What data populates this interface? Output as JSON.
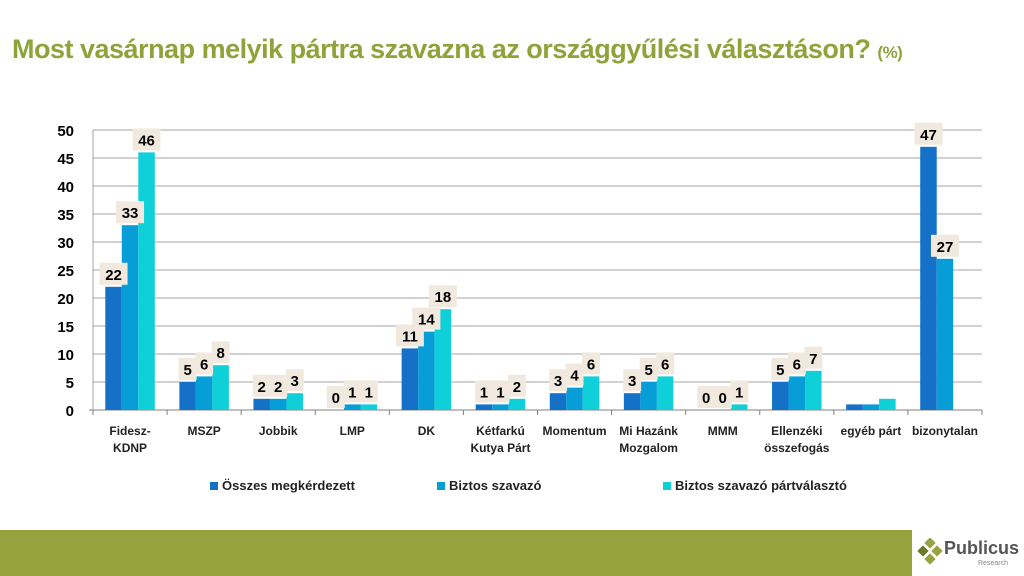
{
  "title": {
    "main": "Most vasárnap melyik pártra szavazna az országgyűlési választáson?",
    "unit": "(%)"
  },
  "logo": {
    "name": "Publicus",
    "sub": "Research"
  },
  "colors": {
    "accent": "#8FA33B",
    "band": "#97A33F",
    "label_bg": "#F1E9DE"
  },
  "chart_data": {
    "type": "bar",
    "title": "Most vasárnap melyik pártra szavazna az országgyűlési választáson? (%)",
    "xlabel": "",
    "ylabel": "",
    "ylim": [
      0,
      50
    ],
    "yticks": [
      "0",
      "5",
      "10",
      "15",
      "20",
      "25",
      "30",
      "35",
      "40",
      "45",
      "50"
    ],
    "grid": true,
    "legend_position": "bottom",
    "categories": [
      [
        "Fidesz-",
        "KDNP"
      ],
      [
        "MSZP"
      ],
      [
        "Jobbik"
      ],
      [
        "LMP"
      ],
      [
        "DK"
      ],
      [
        "Kétfarkú",
        "Kutya Párt"
      ],
      [
        "Momentum"
      ],
      [
        "Mi Hazánk",
        "Mozgalom"
      ],
      [
        "MMM"
      ],
      [
        "Ellenzéki",
        "összefogás"
      ],
      [
        "egyéb párt"
      ],
      [
        "bizonytalan"
      ]
    ],
    "series": [
      {
        "name": "Összes megkérdezett",
        "color": "#1570C8",
        "values": [
          22,
          5,
          2,
          0,
          11,
          1,
          3,
          3,
          0,
          5,
          1,
          47
        ],
        "labels": [
          "22",
          "5",
          "2",
          "0",
          "11",
          "1",
          "3",
          "3",
          "0",
          "5",
          "",
          "47"
        ]
      },
      {
        "name": "Biztos szavazó",
        "color": "#079ED8",
        "values": [
          33,
          6,
          2,
          1,
          14,
          1,
          4,
          5,
          0,
          6,
          1,
          27
        ],
        "labels": [
          "33",
          "6",
          "2",
          "1",
          "14",
          "1",
          "4",
          "5",
          "0",
          "6",
          "",
          "27"
        ]
      },
      {
        "name": "Biztos szavazó pártválasztó",
        "color": "#0FCFD8",
        "values": [
          46,
          8,
          3,
          1,
          18,
          2,
          6,
          6,
          1,
          7,
          2,
          null
        ],
        "labels": [
          "46",
          "8",
          "3",
          "1",
          "18",
          "2",
          "6",
          "6",
          "1",
          "7",
          "",
          ""
        ]
      }
    ]
  }
}
